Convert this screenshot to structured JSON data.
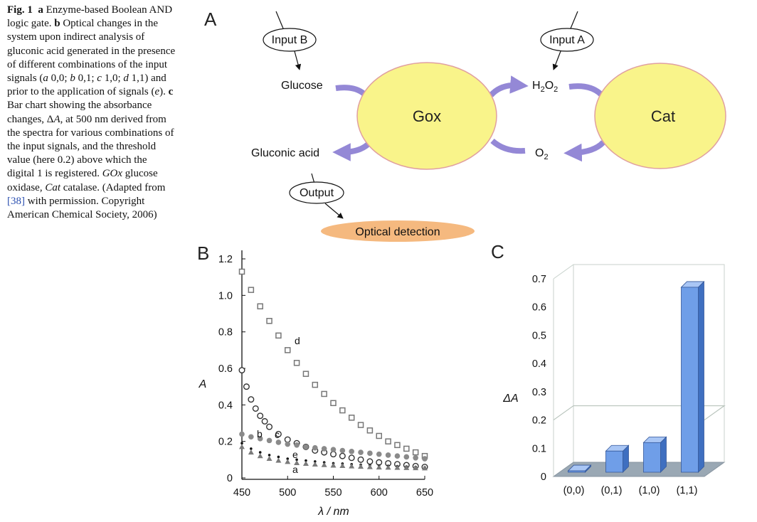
{
  "caption": {
    "fig": "Fig. 1",
    "a": "a",
    "a_text": " Enzyme-based Boolean AND logic gate. ",
    "b": "b",
    "b_text1": " Optical changes in the system upon indirect analysis of gluconic acid generated in the presence of different combinations of the input signals (",
    "ia": "a",
    "t1": " 0,0; ",
    "ib": "b",
    "t2": " 0,1; ",
    "ic": "c",
    "t3": " 1,0; ",
    "id": "d",
    "t4": " 1,1) and prior to the application of signals (",
    "ie": "e",
    "t5": "). ",
    "c": "c",
    "c_text1": " Bar chart showing the absorbance changes, Δ",
    "cA": "A",
    "c_text2": ", at 500 nm derived from the spectra for various combinations of the input signals, and the threshold value (here 0.2) above which the digital 1 is registered. ",
    "gox_abbr": "GOx",
    "gox_def": " glucose oxidase, ",
    "cat_abbr": "Cat",
    "cat_def": " catalase. (Adapted from ",
    "ref": "[38]",
    "end": " with permission. Copyright American Chemical Society, 2006)"
  },
  "panel_a": {
    "letter": "A",
    "input_b": "Input B",
    "input_a": "Input A",
    "glucose": "Glucose",
    "gluconic": "Gluconic acid",
    "gox": "Gox",
    "h2o2_h": "H",
    "h2o2_2a": "2",
    "h2o2_o": "O",
    "h2o2_2b": "2",
    "o2_o": "O",
    "o2_2": "2",
    "cat": "Cat",
    "output": "Output",
    "optical": "Optical detection",
    "colors": {
      "enzyme_fill": "#f9f48a",
      "enzyme_stroke": "#e0a0a0",
      "arrow": "#9488d6",
      "optical_fill": "#f5b97f"
    }
  },
  "panel_b": {
    "letter": "B",
    "curve_labels": {
      "a": "a",
      "b": "b",
      "c": "c",
      "d": "d",
      "e": "e"
    }
  },
  "panel_c": {
    "letter": "C"
  },
  "chart_data": [
    {
      "type": "scatter",
      "xlabel": "λ / nm",
      "ylabel": "A",
      "xlim": [
        450,
        650
      ],
      "ylim": [
        0,
        1.3
      ],
      "xticks": [
        "450",
        "500",
        "550",
        "600",
        "650"
      ],
      "yticks": [
        "0",
        "0.2",
        "0.4",
        "0.6",
        "0.8",
        "1.0",
        "1.2"
      ],
      "series": [
        {
          "name": "d",
          "marker": "open-square",
          "color": "#777777",
          "x": [
            450,
            460,
            470,
            480,
            490,
            500,
            510,
            520,
            530,
            540,
            550,
            560,
            570,
            580,
            590,
            600,
            610,
            620,
            630,
            640,
            650
          ],
          "y": [
            1.13,
            1.03,
            0.94,
            0.86,
            0.78,
            0.7,
            0.63,
            0.57,
            0.51,
            0.46,
            0.41,
            0.37,
            0.33,
            0.29,
            0.26,
            0.23,
            0.2,
            0.18,
            0.16,
            0.14,
            0.12
          ]
        },
        {
          "name": "c",
          "marker": "open-circle",
          "color": "#333333",
          "x": [
            450,
            455,
            460,
            465,
            470,
            475,
            480,
            490,
            500,
            510,
            520,
            530,
            540,
            550,
            560,
            570,
            580,
            590,
            600,
            610,
            620,
            630,
            640,
            650
          ],
          "y": [
            0.59,
            0.5,
            0.43,
            0.38,
            0.34,
            0.31,
            0.28,
            0.24,
            0.21,
            0.19,
            0.17,
            0.15,
            0.14,
            0.13,
            0.12,
            0.11,
            0.1,
            0.09,
            0.085,
            0.08,
            0.075,
            0.07,
            0.065,
            0.06
          ]
        },
        {
          "name": "b",
          "marker": "filled-circle",
          "color": "#8a8a8a",
          "x": [
            450,
            460,
            470,
            480,
            490,
            500,
            510,
            520,
            530,
            540,
            550,
            560,
            570,
            580,
            590,
            600,
            610,
            620,
            630,
            640,
            650
          ],
          "y": [
            0.24,
            0.225,
            0.215,
            0.205,
            0.195,
            0.185,
            0.18,
            0.17,
            0.165,
            0.16,
            0.155,
            0.15,
            0.145,
            0.14,
            0.135,
            0.13,
            0.125,
            0.12,
            0.115,
            0.11,
            0.105
          ]
        },
        {
          "name": "e",
          "marker": "small-dot",
          "color": "#111111",
          "x": [
            450,
            460,
            470,
            480,
            490,
            500,
            510,
            520,
            530,
            540,
            550,
            560,
            570,
            580,
            590,
            600,
            610,
            620,
            630,
            640,
            650
          ],
          "y": [
            0.19,
            0.16,
            0.14,
            0.125,
            0.115,
            0.105,
            0.1,
            0.095,
            0.09,
            0.085,
            0.08,
            0.078,
            0.075,
            0.072,
            0.07,
            0.068,
            0.066,
            0.064,
            0.062,
            0.06,
            0.058
          ]
        },
        {
          "name": "a",
          "marker": "filled-triangle",
          "color": "#7a7a7a",
          "x": [
            450,
            460,
            470,
            480,
            490,
            500,
            510,
            520,
            530,
            540,
            550,
            560,
            570,
            580,
            590,
            600,
            610,
            620,
            630,
            640,
            650
          ],
          "y": [
            0.17,
            0.14,
            0.12,
            0.105,
            0.095,
            0.088,
            0.082,
            0.078,
            0.074,
            0.071,
            0.068,
            0.066,
            0.064,
            0.062,
            0.06,
            0.058,
            0.057,
            0.056,
            0.055,
            0.054,
            0.053
          ]
        }
      ]
    },
    {
      "type": "bar",
      "ylabel": "ΔA",
      "ylim": [
        0,
        0.7
      ],
      "yticks": [
        "0",
        "0.1",
        "0.2",
        "0.3",
        "0.4",
        "0.5",
        "0.6",
        "0.7"
      ],
      "categories": [
        "(0,0)",
        "(0,1)",
        "(1,0)",
        "(1,1)"
      ],
      "values": [
        0.02,
        0.09,
        0.12,
        0.67
      ],
      "threshold": 0.2,
      "style": "3d",
      "bar_color": "#6f9ee8"
    }
  ]
}
